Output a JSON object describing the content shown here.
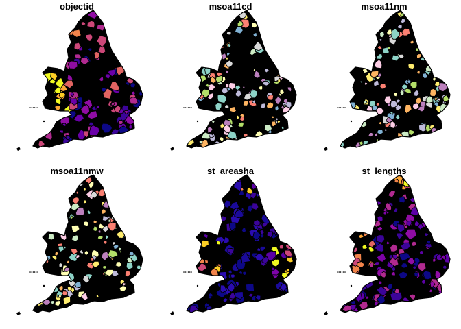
{
  "panels": [
    {
      "title": "objectid",
      "palette": [
        "#0d0887",
        "#3b049a",
        "#6a00a8",
        "#900da4",
        "#b12a90",
        "#cc4778",
        "#e16462",
        "#f2844b",
        "#fca636",
        "#fcce25",
        "#f0f921"
      ]
    },
    {
      "title": "msoa11cd",
      "palette": [
        "#8dd3c7",
        "#ffffb3",
        "#bebada",
        "#fb8072",
        "#80b1d3",
        "#fdb462",
        "#b3de69",
        "#fccde5",
        "#d9d9d9",
        "#bc80bd",
        "#ccebc5",
        "#ffed6f"
      ]
    },
    {
      "title": "msoa11nm",
      "palette": [
        "#8dd3c7",
        "#ffffb3",
        "#bebada",
        "#fb8072",
        "#80b1d3",
        "#fdb462",
        "#b3de69",
        "#fccde5",
        "#d9d9d9",
        "#bc80bd",
        "#ccebc5",
        "#ffed6f"
      ]
    },
    {
      "title": "msoa11nmw",
      "palette": [
        "#8dd3c7",
        "#ffffb3",
        "#bebada",
        "#fb8072",
        "#80b1d3",
        "#fdb462",
        "#b3de69",
        "#fccde5",
        "#d9d9d9",
        "#bc80bd",
        "#ccebc5",
        "#ffed6f"
      ]
    },
    {
      "title": "st_areasha",
      "palette": [
        "#0d0887",
        "#1a0a9a",
        "#2a0cb0",
        "#3b049a",
        "#4c02a1",
        "#5c01a6",
        "#7e03a8",
        "#cc4778",
        "#f2844b",
        "#fcce25",
        "#f0f921"
      ]
    },
    {
      "title": "st_lengths",
      "palette": [
        "#0d0887",
        "#3b049a",
        "#5c01a6",
        "#7e03a8",
        "#900da4",
        "#b12a90",
        "#cc4778",
        "#e16462",
        "#f2844b",
        "#fca636",
        "#f0f921"
      ]
    }
  ],
  "colors": {
    "border": "#000000",
    "background": "#ffffff"
  }
}
